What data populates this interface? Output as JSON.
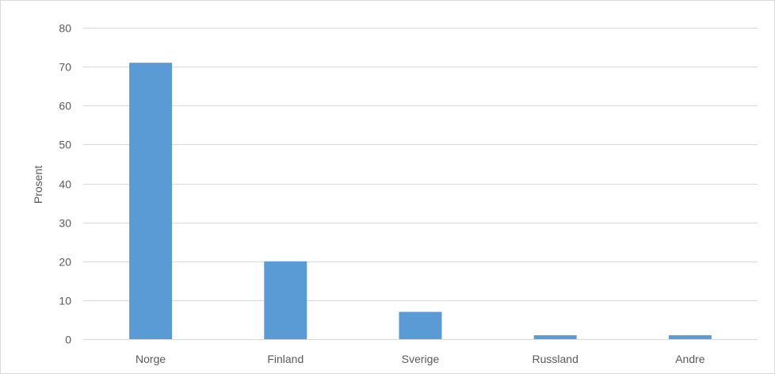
{
  "chart_data": {
    "type": "bar",
    "title": "",
    "xlabel": "",
    "ylabel": "Prosent",
    "categories": [
      "Norge",
      "Finland",
      "Sverige",
      "Russland",
      "Andre"
    ],
    "values": [
      71,
      20,
      7,
      1,
      1
    ],
    "ylim": [
      0,
      80
    ],
    "yticks": [
      0,
      10,
      20,
      30,
      40,
      50,
      60,
      70,
      80
    ],
    "grid": true,
    "legend": "none",
    "colors": {
      "bar": "#5b9bd5",
      "grid": "#d9d9d9",
      "text": "#595959"
    }
  }
}
